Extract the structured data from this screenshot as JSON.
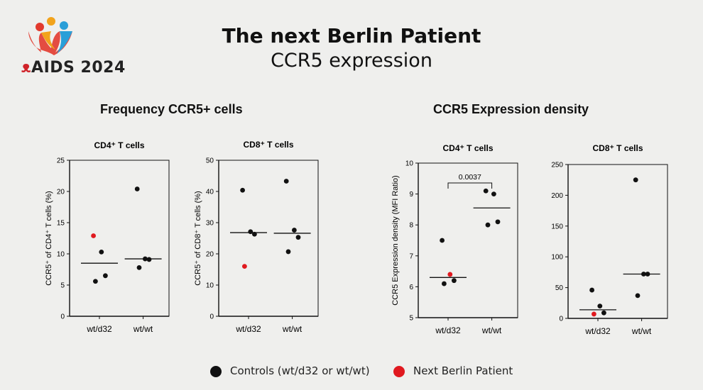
{
  "header": {
    "title": "The next Berlin Patient",
    "subtitle": "CCR5 expression",
    "logo_text": "AIDS 2024",
    "logo_ribbon": "&"
  },
  "sections": {
    "left": "Frequency CCR5+ cells",
    "right": "CCR5 Expression density"
  },
  "legend": {
    "controls": "Controls (wt/d32 or wt/wt)",
    "patient": "Next Berlin Patient",
    "control_color": "#111111",
    "patient_color": "#e0191f"
  },
  "chart_data": [
    {
      "type": "scatter",
      "title": "CD4⁺ T cells",
      "ylabel": "CCR5⁺ of CD4⁺ T cells (%)",
      "categories": [
        "wt/d32",
        "wt/wt"
      ],
      "ylim": [
        0,
        25
      ],
      "yticks": [
        0,
        5,
        10,
        15,
        20,
        25
      ],
      "series": [
        {
          "category": "wt/d32",
          "points": [
            {
              "y": 12.9,
              "patient": true
            },
            {
              "y": 10.3
            },
            {
              "y": 6.5
            },
            {
              "y": 5.6
            }
          ],
          "mean": 8.5
        },
        {
          "category": "wt/wt",
          "points": [
            {
              "y": 20.4
            },
            {
              "y": 9.2
            },
            {
              "y": 9.1
            },
            {
              "y": 7.8
            }
          ],
          "mean": 9.2
        }
      ]
    },
    {
      "type": "scatter",
      "title": "CD8⁺ T cells",
      "ylabel": "CCR5⁺ of CD8⁺ T cells (%)",
      "categories": [
        "wt/d32",
        "wt/wt"
      ],
      "ylim": [
        0,
        50
      ],
      "yticks": [
        0,
        10,
        20,
        30,
        40,
        50
      ],
      "series": [
        {
          "category": "wt/d32",
          "points": [
            {
              "y": 40.4
            },
            {
              "y": 27.1
            },
            {
              "y": 26.3
            },
            {
              "y": 16.0,
              "patient": true
            }
          ],
          "mean": 26.8
        },
        {
          "category": "wt/wt",
          "points": [
            {
              "y": 43.3
            },
            {
              "y": 27.6
            },
            {
              "y": 25.3
            },
            {
              "y": 20.7
            }
          ],
          "mean": 26.6
        }
      ]
    },
    {
      "type": "scatter",
      "title": "CD4⁺ T cells",
      "ylabel": "CCR5 Expression density (MFI Ratio)",
      "categories": [
        "wt/d32",
        "wt/wt"
      ],
      "ylim": [
        5,
        10
      ],
      "yticks": [
        5,
        6,
        7,
        8,
        9,
        10
      ],
      "annotation": "0.0037",
      "series": [
        {
          "category": "wt/d32",
          "points": [
            {
              "y": 7.5
            },
            {
              "y": 6.4,
              "patient": true
            },
            {
              "y": 6.2
            },
            {
              "y": 6.1
            }
          ],
          "mean": 6.3
        },
        {
          "category": "wt/wt",
          "points": [
            {
              "y": 9.1
            },
            {
              "y": 9.0
            },
            {
              "y": 8.1
            },
            {
              "y": 8.0
            }
          ],
          "mean": 8.55
        }
      ]
    },
    {
      "type": "scatter",
      "title": "CD8⁺ T cells",
      "ylabel": "",
      "categories": [
        "wt/d32",
        "wt/wt"
      ],
      "ylim": [
        0,
        250
      ],
      "yticks": [
        0,
        50,
        100,
        150,
        200,
        250
      ],
      "series": [
        {
          "category": "wt/d32",
          "points": [
            {
              "y": 46
            },
            {
              "y": 20
            },
            {
              "y": 9
            },
            {
              "y": 7,
              "patient": true
            }
          ],
          "mean": 14
        },
        {
          "category": "wt/wt",
          "points": [
            {
              "y": 225
            },
            {
              "y": 72
            },
            {
              "y": 72
            },
            {
              "y": 37
            }
          ],
          "mean": 72
        }
      ]
    }
  ]
}
